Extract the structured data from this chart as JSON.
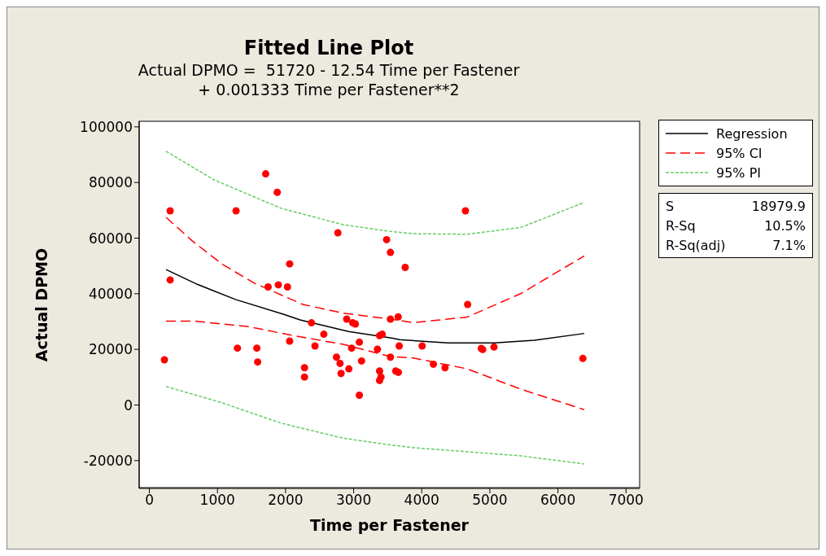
{
  "chart_data": {
    "type": "scatter",
    "title": "Fitted Line Plot",
    "subtitle": "Actual DPMO =  51720 - 12.54 Time per Fastener\n+ 0.001333 Time per Fastener**2",
    "xlabel": "Time per Fastener",
    "ylabel": "Actual DPMO",
    "xlim": [
      -150,
      7200
    ],
    "xticks": [
      0,
      1000,
      2000,
      3000,
      4000,
      5000,
      6000,
      7000
    ],
    "ylim": [
      -30000,
      102000
    ],
    "yticks": [
      -20000,
      0,
      20000,
      40000,
      60000,
      80000,
      100000
    ],
    "grid": false,
    "legend": "right",
    "annotations": [
      "S 18979.9",
      "R-Sq 10.5%",
      "R-Sq(adj) 7.1%"
    ],
    "series": [
      {
        "color": "#ff0000",
        "marker": "circle",
        "x": [
          1708,
          1878,
          305,
          1273,
          2768,
          3484,
          3540,
          2060,
          305,
          1744,
          1894,
          2028,
          2381,
          2898,
          2986,
          3025,
          2562,
          3381,
          3420,
          2060,
          2432,
          1293,
          1578,
          3084,
          2970,
          3349,
          221,
          1590,
          2748,
          2800,
          3540,
          3116,
          2278,
          2930,
          2815,
          2278,
          3381,
          3401,
          3381,
          3084,
          4642,
          3757,
          4674,
          3540,
          3654,
          3669,
          4006,
          4875,
          4895,
          5061,
          4171,
          4342,
          6366,
          3618,
          3657
        ],
        "values": [
          83100,
          76460,
          69800,
          69800,
          61900,
          59450,
          54850,
          50740,
          44960,
          42440,
          43200,
          42440,
          29530,
          30890,
          29530,
          29130,
          25430,
          24930,
          25430,
          22970,
          21210,
          20440,
          20440,
          22580,
          20440,
          20040,
          16230,
          15460,
          17210,
          14960,
          17210,
          15840,
          13400,
          13000,
          11350,
          10060,
          12230,
          10060,
          8800,
          3520,
          69800,
          49480,
          36160,
          30890,
          31680,
          21210,
          21210,
          20330,
          19950,
          20830,
          14670,
          13400,
          16720,
          12230,
          11730
        ]
      },
      {
        "type": "line",
        "name": "Regression",
        "color": "#000000",
        "line_style": "solid",
        "marker": "none",
        "x": [
          245,
          712,
          1265,
          1977,
          2214,
          2926,
          3559,
          3677,
          4389,
          5061,
          5654,
          6386
        ],
        "values": [
          48700,
          43300,
          37930,
          32560,
          30600,
          26400,
          24050,
          23460,
          22290,
          22290,
          23260,
          25720
        ]
      },
      {
        "type": "line",
        "name": "95% CI",
        "color": "#ff0000",
        "line_style": "dashed",
        "marker": "none",
        "x": [
          245,
          632,
          1068,
          1542,
          2254,
          2847,
          3540,
          3875,
          4666,
          5457,
          6386
        ],
        "values": [
          67460,
          58950,
          50650,
          43790,
          36160,
          33050,
          30890,
          29620,
          31590,
          40090,
          53580
        ]
      },
      {
        "type": "line",
        "color": "#ff0000",
        "line_style": "dashed",
        "marker": "none",
        "x": [
          245,
          672,
          1463,
          2056,
          2847,
          3540,
          3875,
          4666,
          5457,
          6386
        ],
        "values": [
          30120,
          30120,
          28160,
          25220,
          21800,
          17400,
          16920,
          13000,
          5660,
          -1670
        ]
      },
      {
        "type": "line",
        "name": "95% PI",
        "color": "#66cc66",
        "line_style": "dotted",
        "marker": "none",
        "x": [
          245,
          949,
          1937,
          2847,
          3540,
          3875,
          4666,
          5457,
          6386
        ],
        "values": [
          91220,
          80950,
          70690,
          64820,
          62380,
          61590,
          61390,
          63850,
          72830
        ]
      },
      {
        "type": "line",
        "color": "#66cc66",
        "line_style": "dotted",
        "marker": "none",
        "x": [
          245,
          1068,
          1937,
          2847,
          3540,
          3875,
          4666,
          5457,
          6386
        ],
        "values": [
          6660,
          790,
          -6540,
          -11940,
          -14370,
          -15340,
          -16810,
          -18270,
          -21210
        ]
      }
    ]
  }
}
